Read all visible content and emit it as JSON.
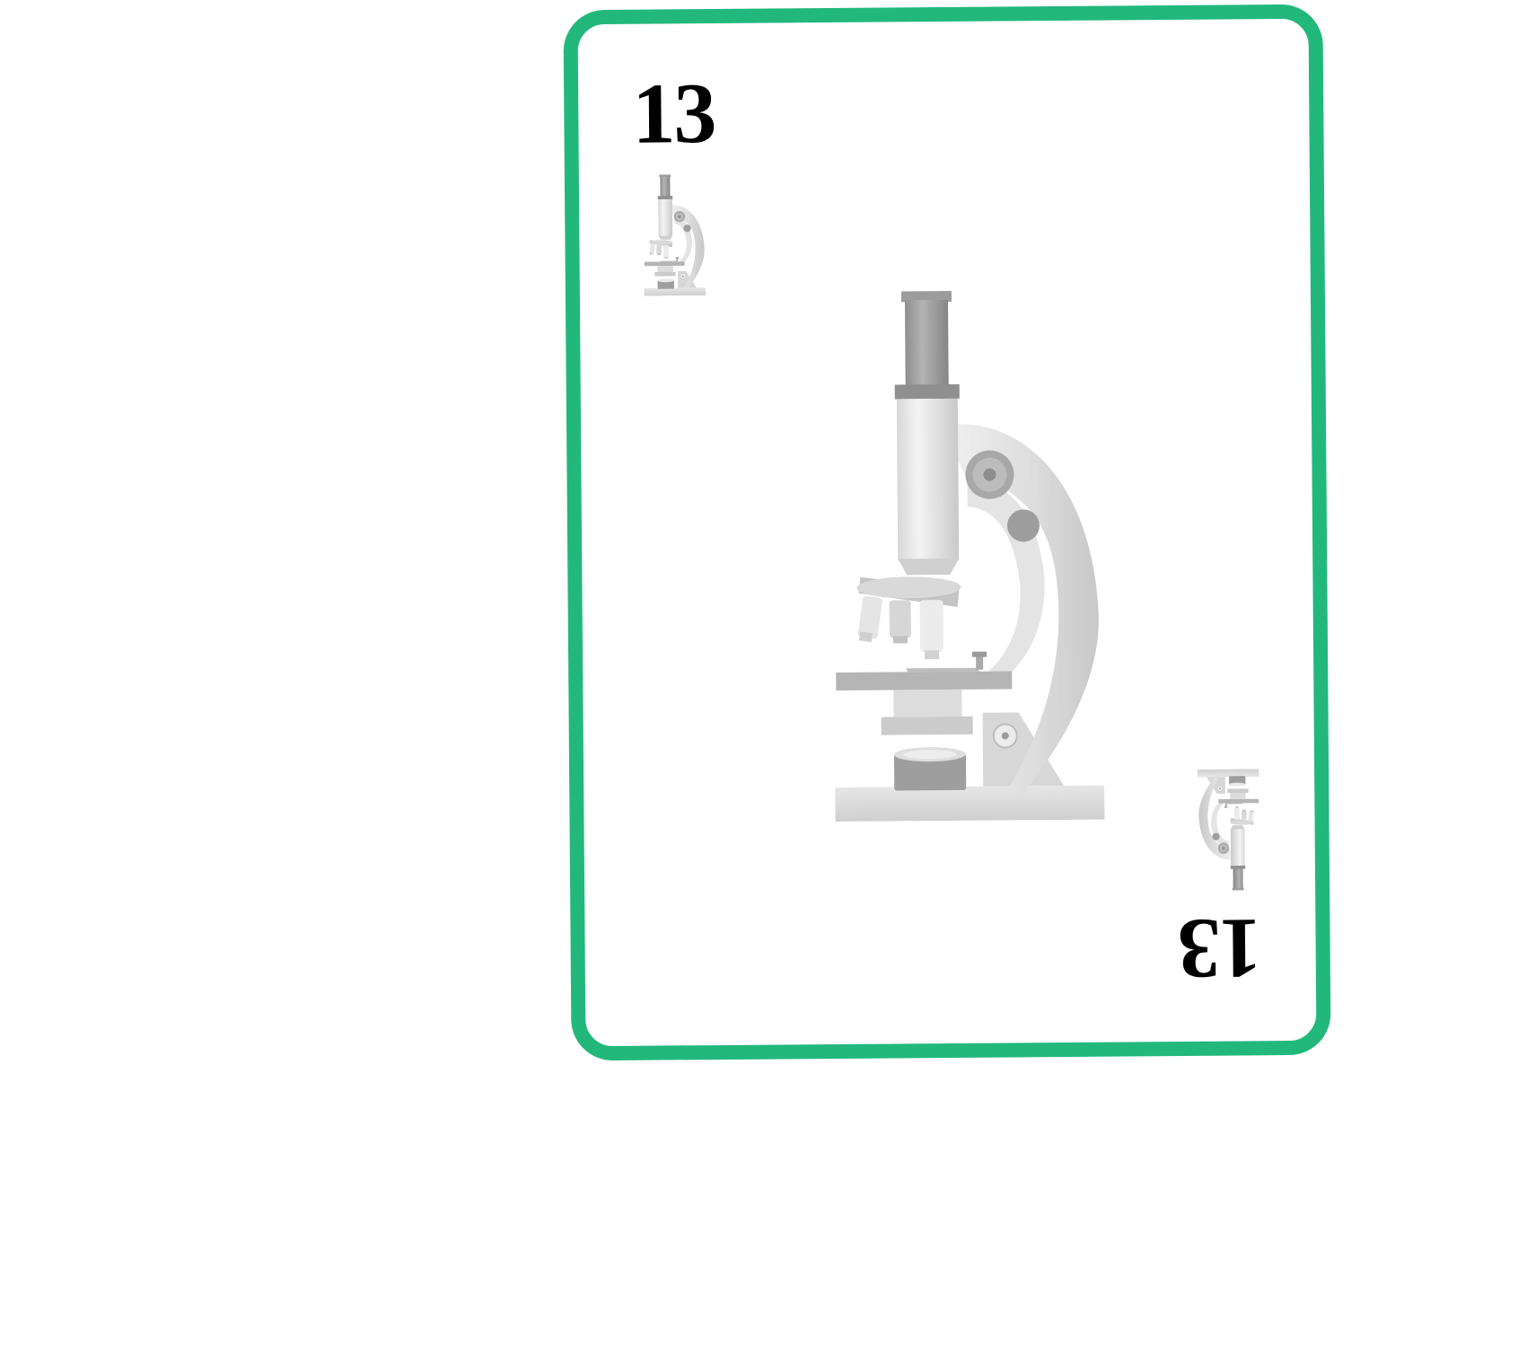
{
  "card": {
    "rank": "13",
    "suit_icon": "microscope-icon",
    "border_color": "#22b87c",
    "background_color": "#ffffff"
  }
}
